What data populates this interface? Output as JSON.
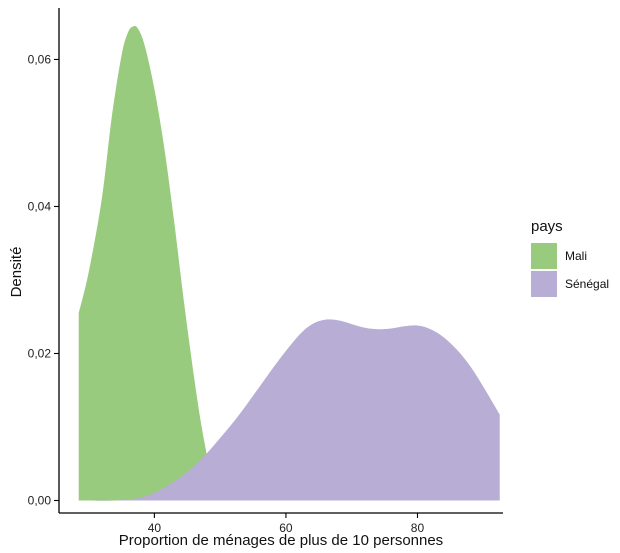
{
  "chart_data": {
    "type": "area",
    "xlabel": "Proportion de ménages de plus de 10 personnes",
    "ylabel": "Densité",
    "xlim": [
      25.5,
      93
    ],
    "ylim": [
      -0.0017,
      0.067
    ],
    "x_ticks": [
      40,
      60,
      80
    ],
    "x_tick_labels": [
      "40",
      "60",
      "80"
    ],
    "y_ticks": [
      0,
      0.02,
      0.04,
      0.06
    ],
    "y_tick_labels": [
      "0,00",
      "0,02",
      "0,04",
      "0,06"
    ],
    "grid": false,
    "legend": {
      "title": "pays",
      "position": "right",
      "entries": [
        {
          "label": "Mali",
          "color": "#98CB7D"
        },
        {
          "label": "Sénégal",
          "color": "#B8ADD4"
        }
      ]
    },
    "series": [
      {
        "name": "Mali",
        "color": "#98CB7D",
        "x": [
          28.5,
          30,
          32,
          33.5,
          35,
          36,
          36.8,
          37.5,
          38.5,
          40,
          41.5,
          43,
          44.5,
          46,
          47,
          48,
          48.5,
          49
        ],
        "y": [
          0.0255,
          0.031,
          0.041,
          0.052,
          0.0605,
          0.0637,
          0.0645,
          0.0642,
          0.062,
          0.056,
          0.048,
          0.038,
          0.027,
          0.017,
          0.011,
          0.006,
          0.003,
          0.0
        ]
      },
      {
        "name": "Sénégal",
        "color": "#B8ADD4",
        "x": [
          28.5,
          34,
          38,
          41,
          44,
          47,
          50,
          53,
          56,
          59,
          62,
          64,
          66,
          68,
          70,
          72,
          74,
          76,
          78,
          80,
          82,
          84,
          86,
          88,
          90,
          92.5
        ],
        "y": [
          0.0,
          0.0,
          0.0004,
          0.0015,
          0.0032,
          0.0055,
          0.0085,
          0.0118,
          0.0155,
          0.0192,
          0.0225,
          0.024,
          0.0246,
          0.0245,
          0.024,
          0.0235,
          0.0233,
          0.0234,
          0.0237,
          0.0238,
          0.0233,
          0.0222,
          0.0205,
          0.0183,
          0.0155,
          0.0117
        ]
      }
    ]
  }
}
